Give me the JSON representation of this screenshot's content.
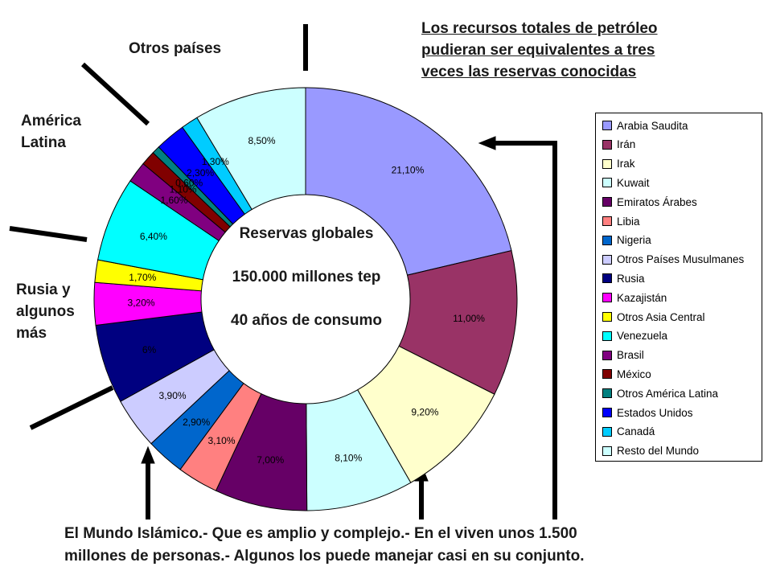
{
  "headline": {
    "line1": "Los recursos totales de petróleo",
    "line2": "pudieran ser equivalentes a tres",
    "line3": "veces las reservas conocidas"
  },
  "region_labels": {
    "otros_paises": "Otros países",
    "america_latina_1": "América",
    "america_latina_2": "Latina",
    "rusia_1": "Rusia y",
    "rusia_2": "algunos",
    "rusia_3": "más"
  },
  "center": {
    "line1": "Reservas globales",
    "line2": "150.000 millones tep",
    "line3": "40 años de consumo"
  },
  "footer": {
    "line1": "El Mundo Islámico.- Que es amplio y complejo.- En el viven unos 1.500",
    "line2": "millones de personas.- Algunos los puede manejar casi en su conjunto."
  },
  "chart_data": {
    "type": "pie",
    "title": "",
    "categories": [
      "Arabia Saudita",
      "Irán",
      "Irak",
      "Kuwait",
      "Emiratos Árabes",
      "Libia",
      "Nigeria",
      "Otros Países Musulmanes",
      "Rusia",
      "Kazajistán",
      "Otros Asia Central",
      "Venezuela",
      "Brasil",
      "México",
      "Otros América Latina",
      "Estados Unidos",
      "Canadá",
      "Resto del Mundo"
    ],
    "values": [
      21.1,
      11.0,
      9.2,
      8.1,
      7.0,
      3.1,
      2.9,
      3.9,
      6.0,
      3.2,
      1.7,
      6.4,
      1.6,
      1.1,
      0.6,
      2.3,
      1.3,
      8.5
    ],
    "labels": [
      "21,10%",
      "11,00%",
      "9,20%",
      "8,10%",
      "7,00%",
      "3,10%",
      "2,90%",
      "3,90%",
      "6%",
      "3,20%",
      "1,70%",
      "6,40%",
      "1,60%",
      "1,10%",
      "0,60%",
      "2,30%",
      "1,30%",
      "8,50%"
    ],
    "colors": [
      "#9999ff",
      "#993366",
      "#ffffcc",
      "#ccffff",
      "#660066",
      "#ff8080",
      "#0066cc",
      "#ccccff",
      "#000080",
      "#ff00ff",
      "#ffff00",
      "#00ffff",
      "#800080",
      "#800000",
      "#008080",
      "#0000ff",
      "#00ccff",
      "#ccffff"
    ],
    "style": "doughnut",
    "legend_position": "right"
  }
}
